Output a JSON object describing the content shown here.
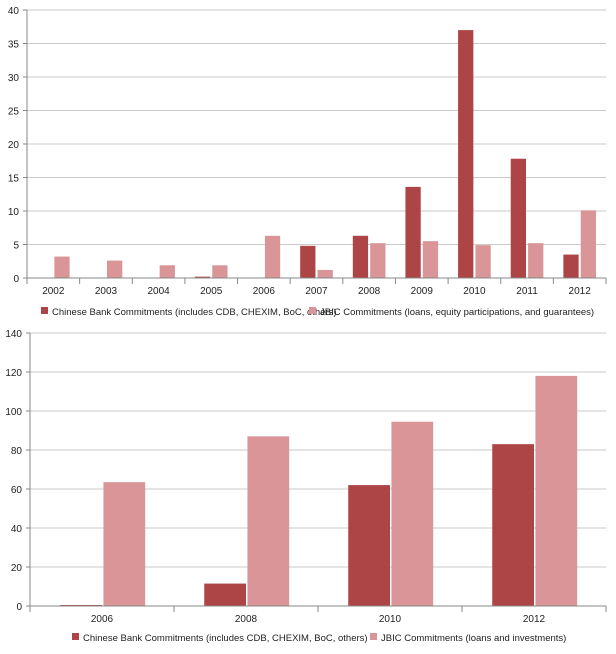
{
  "colors": {
    "series1": "#ad4446",
    "series2": "#d99597",
    "axis": "#888888",
    "grid": "#b9b9b9"
  },
  "chart_data": [
    {
      "type": "bar",
      "title": "",
      "xlabel": "",
      "ylabel": "",
      "categories": [
        "2002",
        "2003",
        "2004",
        "2005",
        "2006",
        "2007",
        "2008",
        "2009",
        "2010",
        "2011",
        "2012"
      ],
      "ylim": [
        0,
        40
      ],
      "yticks": [
        0,
        5,
        10,
        15,
        20,
        25,
        30,
        35,
        40
      ],
      "series": [
        {
          "name": "Chinese Bank Commitments (includes CDB, CHEXIM, BoC, others)",
          "values": [
            0,
            0,
            0,
            0.2,
            0,
            4.8,
            6.3,
            13.6,
            37,
            17.8,
            3.5
          ]
        },
        {
          "name": "JBIC Commitments (loans, equity participations, and guarantees)",
          "values": [
            3.2,
            2.6,
            1.9,
            1.9,
            6.3,
            1.2,
            5.2,
            5.5,
            4.9,
            5.2,
            10.1
          ]
        }
      ],
      "legend": "bottom"
    },
    {
      "type": "bar",
      "title": "",
      "xlabel": "",
      "ylabel": "",
      "categories": [
        "2006",
        "2008",
        "2010",
        "2012"
      ],
      "ylim": [
        0,
        140
      ],
      "yticks": [
        0,
        20,
        40,
        60,
        80,
        100,
        120,
        140
      ],
      "series": [
        {
          "name": "Chinese Bank Commitments (includes CDB, CHEXIM, BoC, others)",
          "values": [
            0.5,
            11.5,
            62,
            83
          ]
        },
        {
          "name": "JBIC Commitments (loans and investments)",
          "values": [
            63.5,
            87,
            94.5,
            118
          ]
        }
      ],
      "legend": "bottom"
    }
  ]
}
